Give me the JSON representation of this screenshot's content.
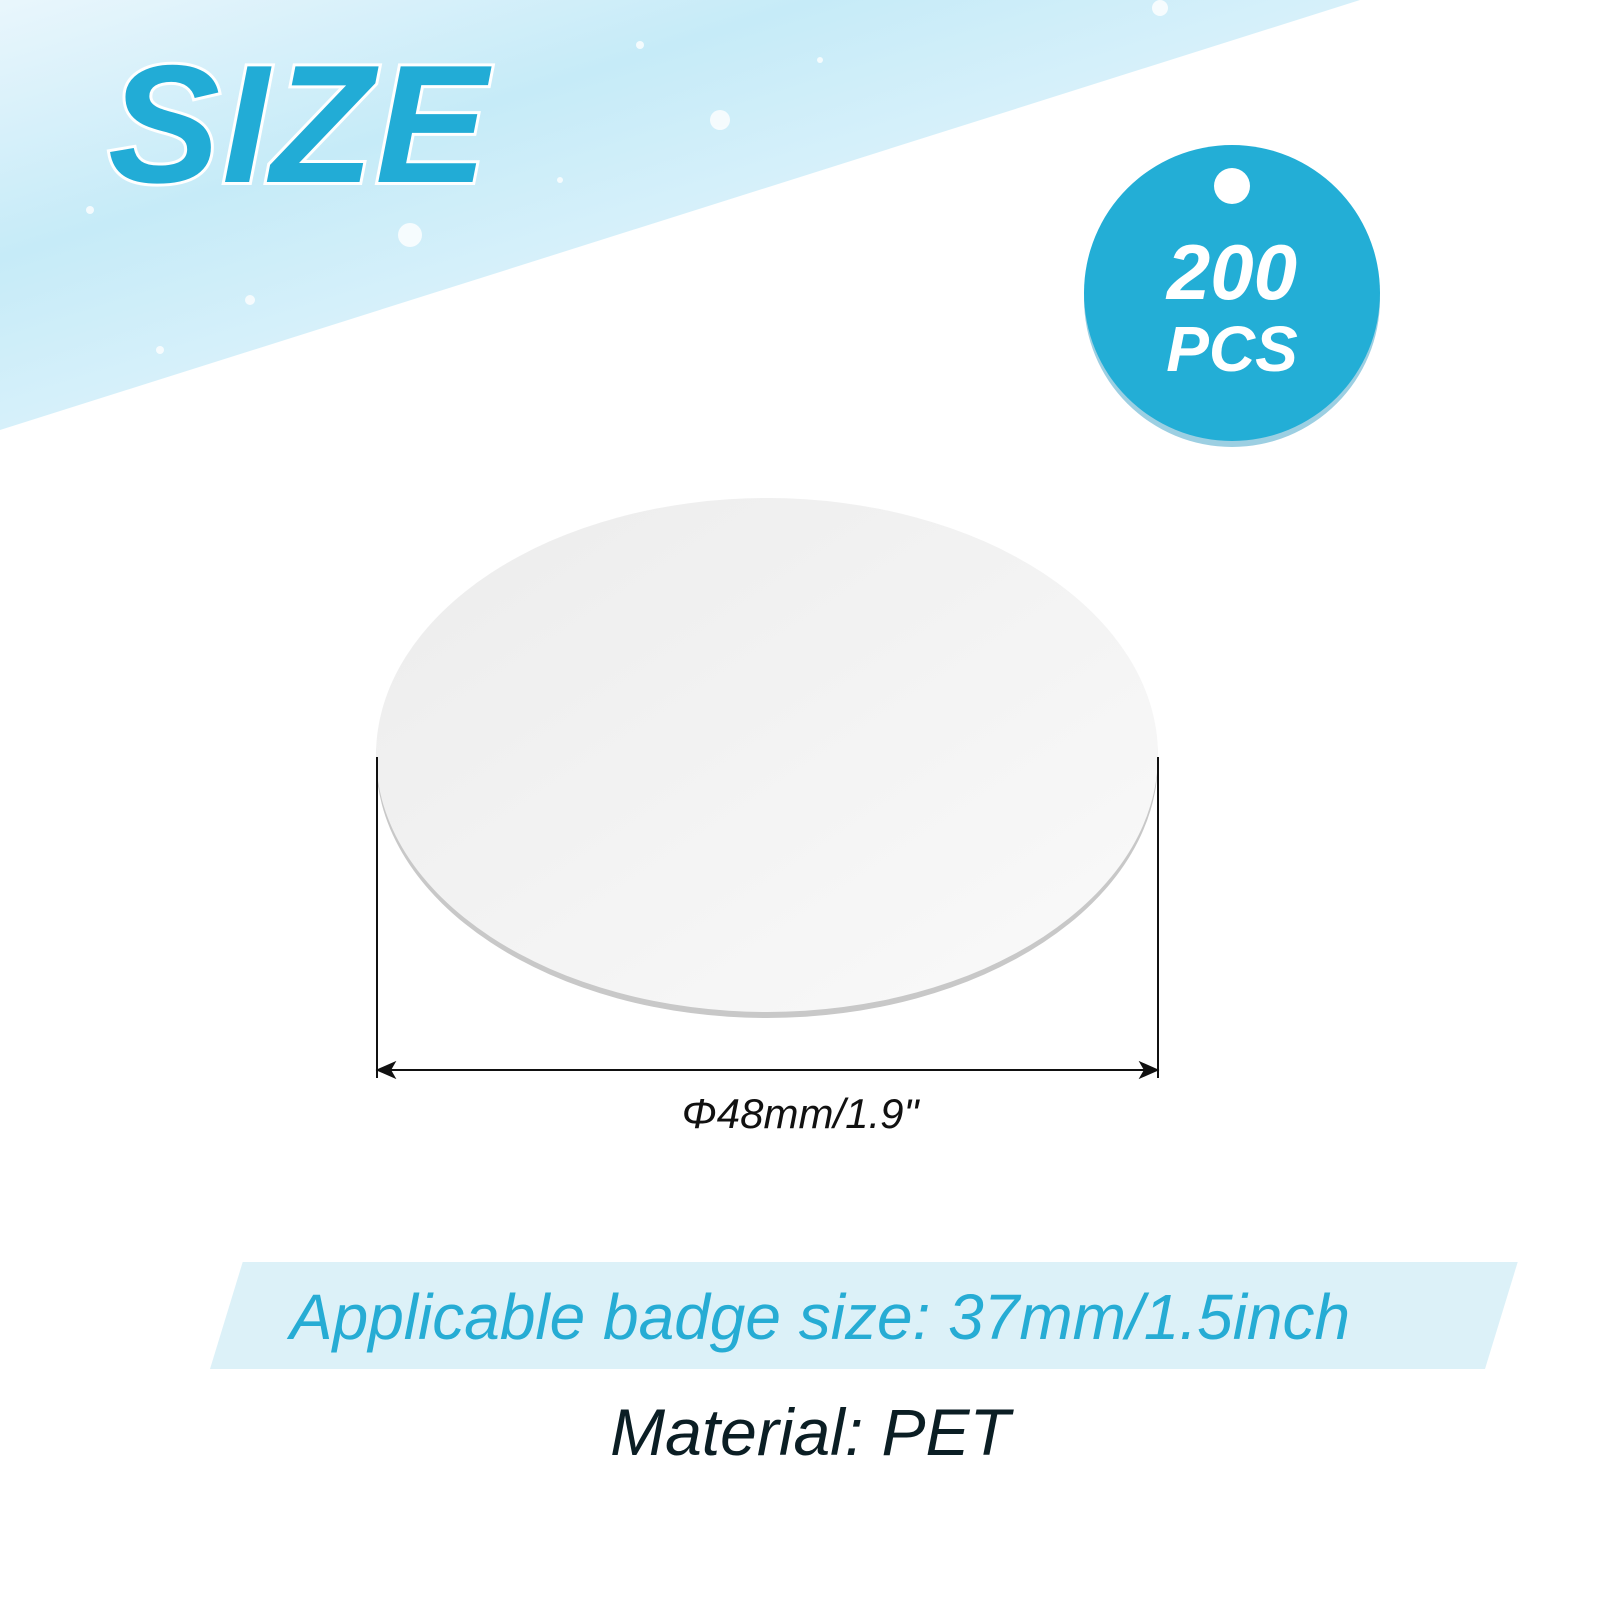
{
  "header": {
    "title": "SIZE"
  },
  "quantity_badge": {
    "count": "200",
    "unit": "PCS",
    "color": "#23aed6"
  },
  "product": {
    "shape": "circle",
    "diameter_label": "Φ48mm/1.9\""
  },
  "specs": {
    "applicable_badge_size": "Applicable badge size: 37mm/1.5inch",
    "material": "Material: PET"
  },
  "colors": {
    "accent": "#22acd6",
    "band": "#dcf1f8",
    "text_dark": "#0b1e24"
  }
}
